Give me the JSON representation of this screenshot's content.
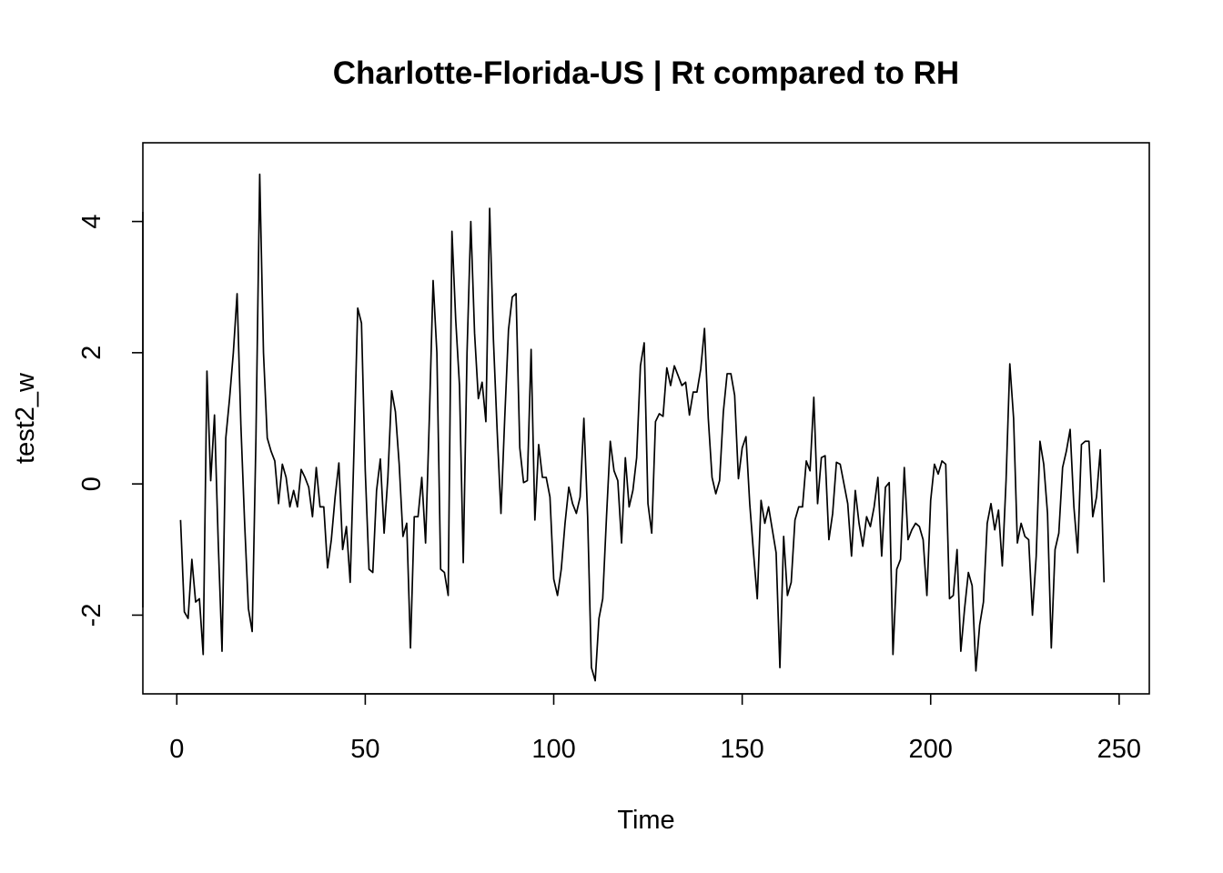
{
  "chart_data": {
    "type": "line",
    "title": "Charlotte-Florida-US | Rt compared to RH",
    "xlabel": "Time",
    "ylabel": "test2_w",
    "xlim": [
      -9,
      258
    ],
    "ylim": [
      -3.2,
      5.2
    ],
    "x_ticks": [
      0,
      50,
      100,
      150,
      200,
      250
    ],
    "y_ticks": [
      -2,
      0,
      2,
      4
    ],
    "x_tick_labels": [
      "0",
      "50",
      "100",
      "150",
      "200",
      "250"
    ],
    "y_tick_labels": [
      "-2",
      "0",
      "2",
      "4"
    ],
    "grid": false,
    "legend": "none",
    "line_color": "#000000",
    "series": [
      {
        "x_start": 1,
        "values": [
          -0.55,
          -1.95,
          -2.05,
          -1.15,
          -1.8,
          -1.75,
          -2.6,
          1.72,
          0.05,
          1.05,
          -0.9,
          -2.55,
          0.7,
          1.3,
          2.0,
          2.9,
          0.9,
          -0.6,
          -1.9,
          -2.25,
          0.7,
          4.72,
          2.0,
          0.7,
          0.5,
          0.35,
          -0.3,
          0.3,
          0.1,
          -0.35,
          -0.1,
          -0.35,
          0.22,
          0.1,
          -0.05,
          -0.5,
          0.25,
          -0.35,
          -0.35,
          -1.28,
          -0.85,
          -0.2,
          0.32,
          -1.0,
          -0.65,
          -1.5,
          0.5,
          2.68,
          2.45,
          0.2,
          -1.3,
          -1.35,
          -0.1,
          0.38,
          -0.75,
          0.1,
          1.42,
          1.1,
          0.3,
          -0.8,
          -0.6,
          -2.5,
          -0.5,
          -0.5,
          0.1,
          -0.9,
          1.0,
          3.1,
          2.0,
          -1.3,
          -1.35,
          -1.7,
          3.85,
          2.5,
          1.5,
          -1.2,
          2.0,
          4.0,
          2.3,
          1.3,
          1.55,
          0.95,
          4.2,
          2.2,
          0.8,
          -0.45,
          1.0,
          2.35,
          2.85,
          2.9,
          0.55,
          0.02,
          0.05,
          2.05,
          -0.55,
          0.6,
          0.1,
          0.1,
          -0.2,
          -1.45,
          -1.7,
          -1.3,
          -0.6,
          -0.05,
          -0.3,
          -0.45,
          -0.2,
          1.0,
          -0.5,
          -2.8,
          -3.0,
          -2.05,
          -1.75,
          -0.5,
          0.65,
          0.2,
          0.05,
          -0.9,
          0.4,
          -0.35,
          -0.1,
          0.4,
          1.8,
          2.15,
          -0.3,
          -0.75,
          0.95,
          1.07,
          1.03,
          1.77,
          1.5,
          1.8,
          1.65,
          1.5,
          1.55,
          1.05,
          1.4,
          1.4,
          1.75,
          2.37,
          1.0,
          0.1,
          -0.15,
          0.05,
          1.1,
          1.68,
          1.68,
          1.35,
          0.08,
          0.55,
          0.72,
          -0.3,
          -1.05,
          -1.75,
          -0.25,
          -0.6,
          -0.35,
          -0.7,
          -1.05,
          -2.8,
          -0.8,
          -1.7,
          -1.5,
          -0.55,
          -0.35,
          -0.35,
          0.35,
          0.2,
          1.32,
          -0.3,
          0.4,
          0.43,
          -0.85,
          -0.45,
          0.33,
          0.3,
          0.0,
          -0.3,
          -1.1,
          -0.1,
          -0.6,
          -0.95,
          -0.5,
          -0.65,
          -0.35,
          0.1,
          -1.1,
          -0.05,
          0.02,
          -2.6,
          -1.3,
          -1.15,
          0.25,
          -0.85,
          -0.7,
          -0.6,
          -0.65,
          -0.85,
          -1.7,
          -0.25,
          0.3,
          0.15,
          0.35,
          0.3,
          -1.75,
          -1.7,
          -1.0,
          -2.55,
          -1.9,
          -1.35,
          -1.55,
          -2.85,
          -2.15,
          -1.8,
          -0.6,
          -0.3,
          -0.7,
          -0.4,
          -1.25,
          0.05,
          1.83,
          1.0,
          -0.9,
          -0.6,
          -0.8,
          -0.85,
          -2.0,
          -1.1,
          0.65,
          0.3,
          -0.45,
          -2.5,
          -1.0,
          -0.75,
          0.25,
          0.5,
          0.83,
          -0.35,
          -1.05,
          0.6,
          0.65,
          0.65,
          -0.5,
          -0.2,
          0.52,
          -1.5
        ]
      }
    ]
  }
}
